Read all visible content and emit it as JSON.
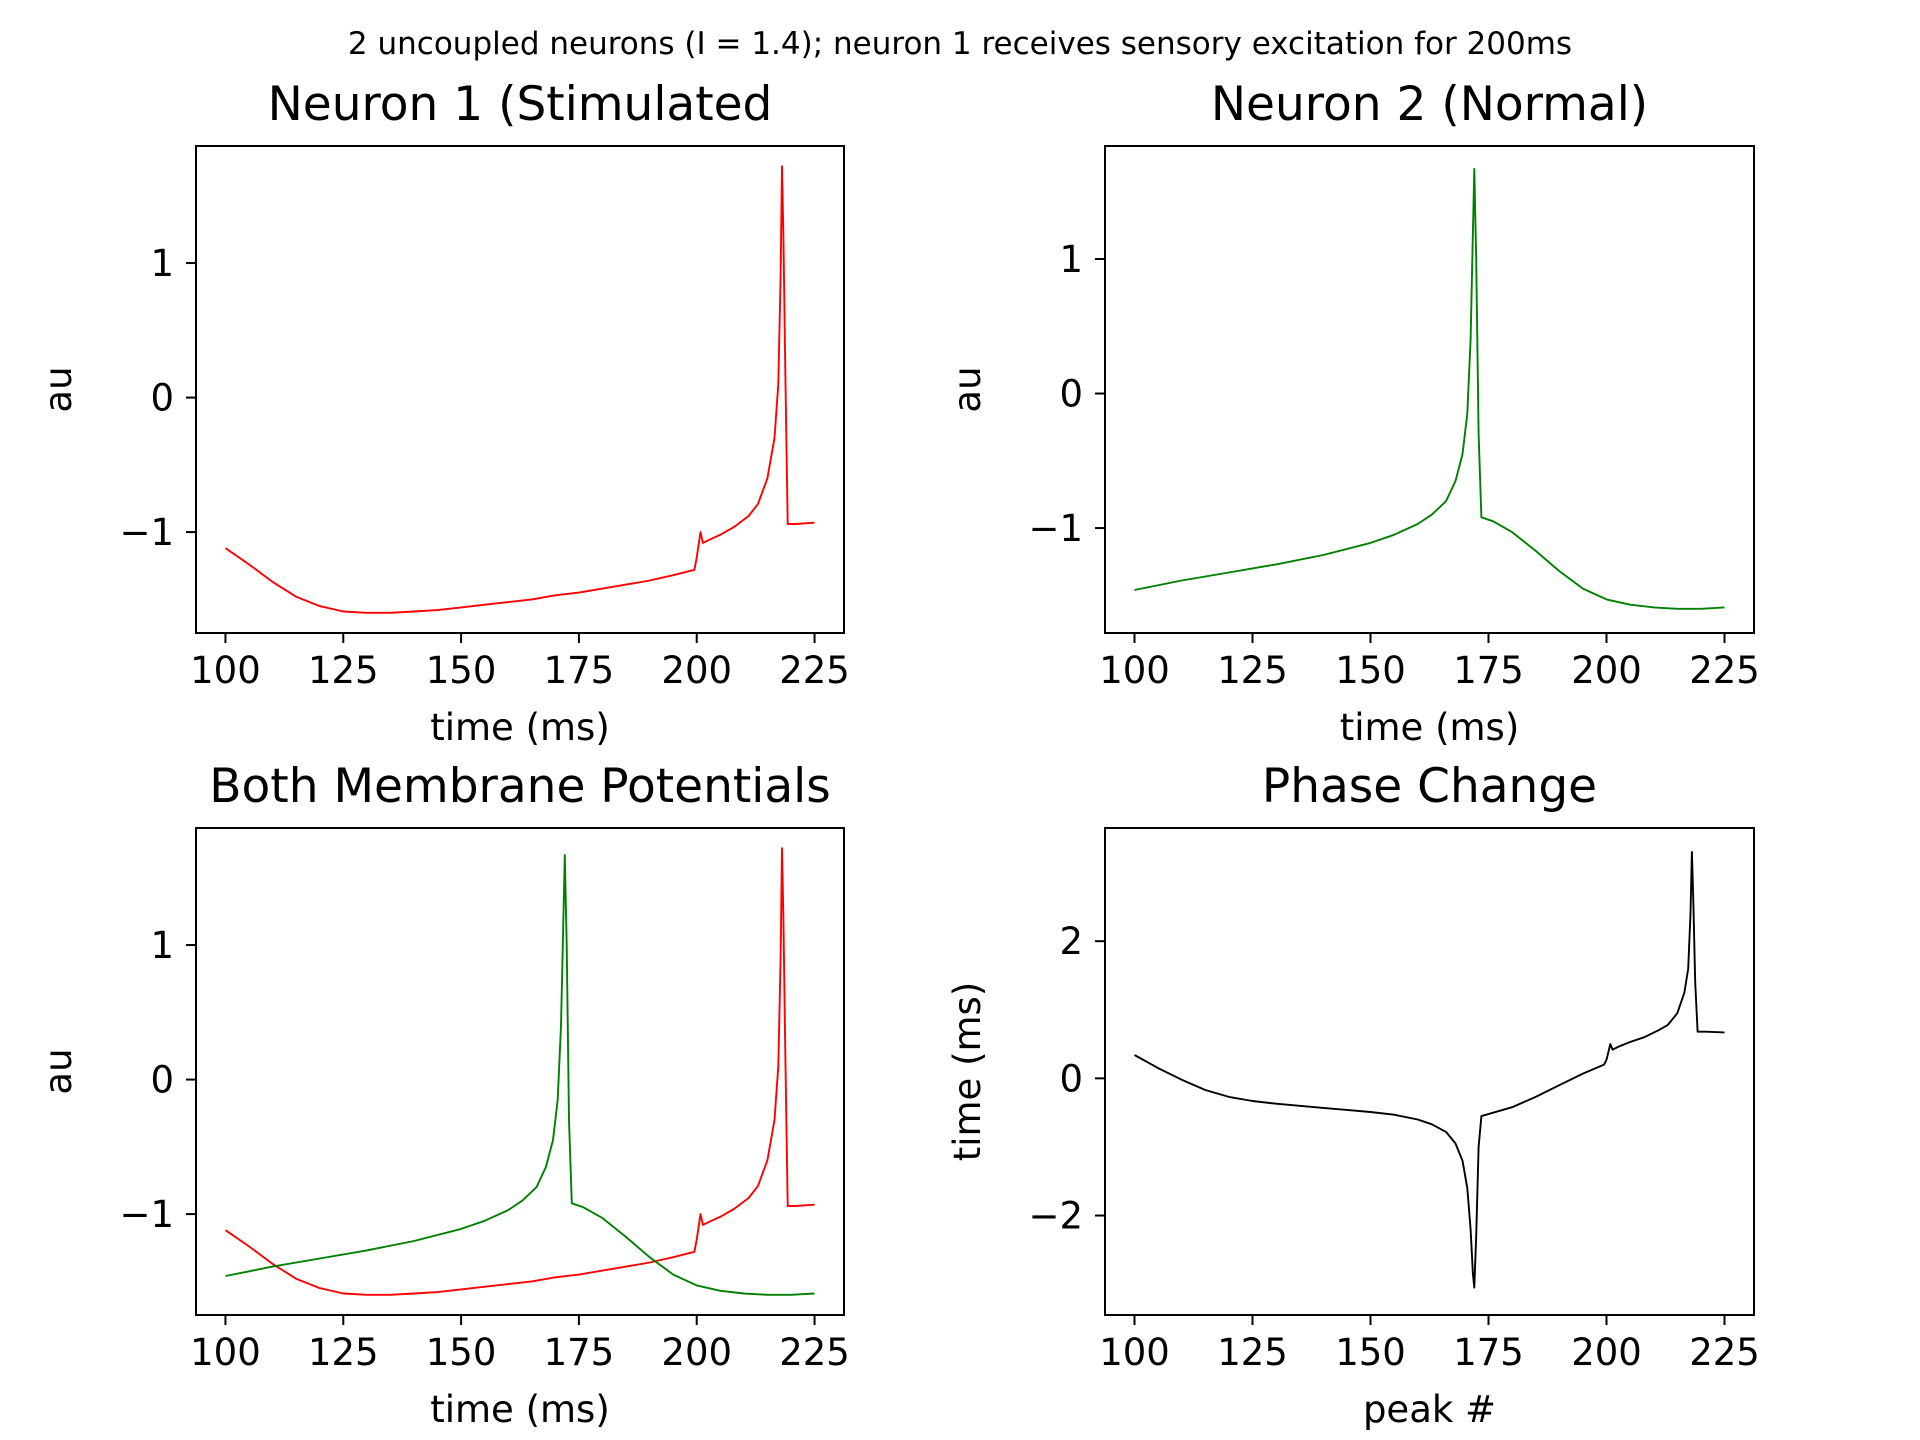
{
  "figure": {
    "suptitle": "2 uncoupled neurons (I = 1.4); neuron 1 receives sensory excitation for 200ms"
  },
  "colors": {
    "neuron1": "#ff0000",
    "neuron2": "#008000",
    "phase": "#000000",
    "axes": "#000000"
  },
  "chart_data": [
    {
      "id": "neuron1",
      "type": "line",
      "title": "Neuron 1 (Stimulated",
      "xlabel": "time (ms)",
      "ylabel": "au",
      "xlim": [
        93.75,
        231.25
      ],
      "ylim": [
        -1.75,
        1.87
      ],
      "xticks": [
        100,
        125,
        150,
        175,
        200,
        225
      ],
      "yticks": [
        -1,
        0,
        1
      ],
      "grid": false,
      "series": [
        {
          "color": "#ff0000",
          "x": [
            100,
            105,
            110,
            115,
            120,
            125,
            130,
            135,
            140,
            145,
            150,
            155,
            160,
            165,
            170,
            175,
            180,
            185,
            190,
            195,
            199.5,
            200,
            200.8,
            201.3,
            202.5,
            205,
            208,
            211,
            213,
            215,
            216.5,
            217.3,
            217.8,
            218.1,
            218.4,
            218.8,
            219.3,
            221,
            225
          ],
          "y": [
            -1.12,
            -1.24,
            -1.37,
            -1.48,
            -1.55,
            -1.59,
            -1.6,
            -1.6,
            -1.59,
            -1.58,
            -1.56,
            -1.54,
            -1.52,
            -1.5,
            -1.47,
            -1.45,
            -1.42,
            -1.39,
            -1.36,
            -1.32,
            -1.28,
            -1.19,
            -1.0,
            -1.08,
            -1.06,
            -1.02,
            -0.96,
            -0.88,
            -0.79,
            -0.6,
            -0.3,
            0.1,
            0.9,
            1.72,
            1.2,
            0.2,
            -0.94,
            -0.94,
            -0.93
          ]
        }
      ]
    },
    {
      "id": "neuron2",
      "type": "line",
      "title": "Neuron 2 (Normal)",
      "xlabel": "time (ms)",
      "ylabel": "au",
      "xlim": [
        93.75,
        231.25
      ],
      "ylim": [
        -1.78,
        1.84
      ],
      "xticks": [
        100,
        125,
        150,
        175,
        200,
        225
      ],
      "yticks": [
        -1,
        0,
        1
      ],
      "grid": false,
      "series": [
        {
          "color": "#008000",
          "x": [
            100,
            110,
            120,
            130,
            140,
            150,
            155,
            160,
            163,
            166,
            168,
            169.5,
            170.5,
            171.2,
            171.7,
            172,
            172.4,
            172.9,
            173.5,
            176,
            180,
            185,
            190,
            195,
            200,
            205,
            210,
            215,
            220,
            225
          ],
          "y": [
            -1.46,
            -1.39,
            -1.33,
            -1.27,
            -1.2,
            -1.11,
            -1.05,
            -0.97,
            -0.9,
            -0.8,
            -0.65,
            -0.45,
            -0.15,
            0.4,
            1.2,
            1.67,
            1.0,
            -0.3,
            -0.92,
            -0.95,
            -1.03,
            -1.17,
            -1.32,
            -1.45,
            -1.53,
            -1.57,
            -1.59,
            -1.6,
            -1.6,
            -1.59
          ]
        }
      ]
    },
    {
      "id": "both",
      "type": "line",
      "title": "Both Membrane Potentials",
      "xlabel": "time (ms)",
      "ylabel": "au",
      "xlim": [
        93.75,
        231.25
      ],
      "ylim": [
        -1.75,
        1.87
      ],
      "xticks": [
        100,
        125,
        150,
        175,
        200,
        225
      ],
      "yticks": [
        -1,
        0,
        1
      ],
      "grid": false,
      "series": [
        {
          "color": "#ff0000",
          "x": [
            100,
            105,
            110,
            115,
            120,
            125,
            130,
            135,
            140,
            145,
            150,
            155,
            160,
            165,
            170,
            175,
            180,
            185,
            190,
            195,
            199.5,
            200,
            200.8,
            201.3,
            202.5,
            205,
            208,
            211,
            213,
            215,
            216.5,
            217.3,
            217.8,
            218.1,
            218.4,
            218.8,
            219.3,
            221,
            225
          ],
          "y": [
            -1.12,
            -1.24,
            -1.37,
            -1.48,
            -1.55,
            -1.59,
            -1.6,
            -1.6,
            -1.59,
            -1.58,
            -1.56,
            -1.54,
            -1.52,
            -1.5,
            -1.47,
            -1.45,
            -1.42,
            -1.39,
            -1.36,
            -1.32,
            -1.28,
            -1.19,
            -1.0,
            -1.08,
            -1.06,
            -1.02,
            -0.96,
            -0.88,
            -0.79,
            -0.6,
            -0.3,
            0.1,
            0.9,
            1.72,
            1.2,
            0.2,
            -0.94,
            -0.94,
            -0.93
          ]
        },
        {
          "color": "#008000",
          "x": [
            100,
            110,
            120,
            130,
            140,
            150,
            155,
            160,
            163,
            166,
            168,
            169.5,
            170.5,
            171.2,
            171.7,
            172,
            172.4,
            172.9,
            173.5,
            176,
            180,
            185,
            190,
            195,
            200,
            205,
            210,
            215,
            220,
            225
          ],
          "y": [
            -1.46,
            -1.39,
            -1.33,
            -1.27,
            -1.2,
            -1.11,
            -1.05,
            -0.97,
            -0.9,
            -0.8,
            -0.65,
            -0.45,
            -0.15,
            0.4,
            1.2,
            1.67,
            1.0,
            -0.3,
            -0.92,
            -0.95,
            -1.03,
            -1.17,
            -1.32,
            -1.45,
            -1.53,
            -1.57,
            -1.59,
            -1.6,
            -1.6,
            -1.59
          ]
        }
      ]
    },
    {
      "id": "phase",
      "type": "line",
      "title": "Phase Change",
      "xlabel": "peak #",
      "ylabel": "time (ms)",
      "xlim": [
        93.75,
        231.25
      ],
      "ylim": [
        -3.45,
        3.65
      ],
      "xticks": [
        100,
        125,
        150,
        175,
        200,
        225
      ],
      "yticks": [
        -2,
        0,
        2
      ],
      "grid": false,
      "series": [
        {
          "color": "#000000",
          "x": [
            100,
            105,
            110,
            115,
            120,
            125,
            130,
            135,
            140,
            145,
            150,
            155,
            160,
            163,
            166,
            168,
            169.5,
            170.5,
            171.2,
            171.7,
            172,
            172.4,
            172.9,
            173.5,
            176,
            180,
            185,
            190,
            195,
            199.5,
            200,
            200.8,
            201.3,
            202.5,
            205,
            208,
            211,
            213,
            215,
            216.5,
            217.3,
            217.8,
            218.1,
            218.4,
            218.8,
            219.3,
            221,
            225
          ],
          "y": [
            0.34,
            0.15,
            -0.02,
            -0.17,
            -0.27,
            -0.33,
            -0.37,
            -0.4,
            -0.43,
            -0.46,
            -0.49,
            -0.53,
            -0.6,
            -0.67,
            -0.78,
            -0.95,
            -1.2,
            -1.6,
            -2.2,
            -2.85,
            -3.05,
            -2.3,
            -1.0,
            -0.55,
            -0.5,
            -0.42,
            -0.27,
            -0.1,
            0.07,
            0.2,
            0.27,
            0.5,
            0.42,
            0.46,
            0.53,
            0.6,
            0.7,
            0.78,
            0.95,
            1.25,
            1.6,
            2.4,
            3.3,
            2.6,
            1.4,
            0.68,
            0.68,
            0.67
          ]
        }
      ]
    }
  ]
}
